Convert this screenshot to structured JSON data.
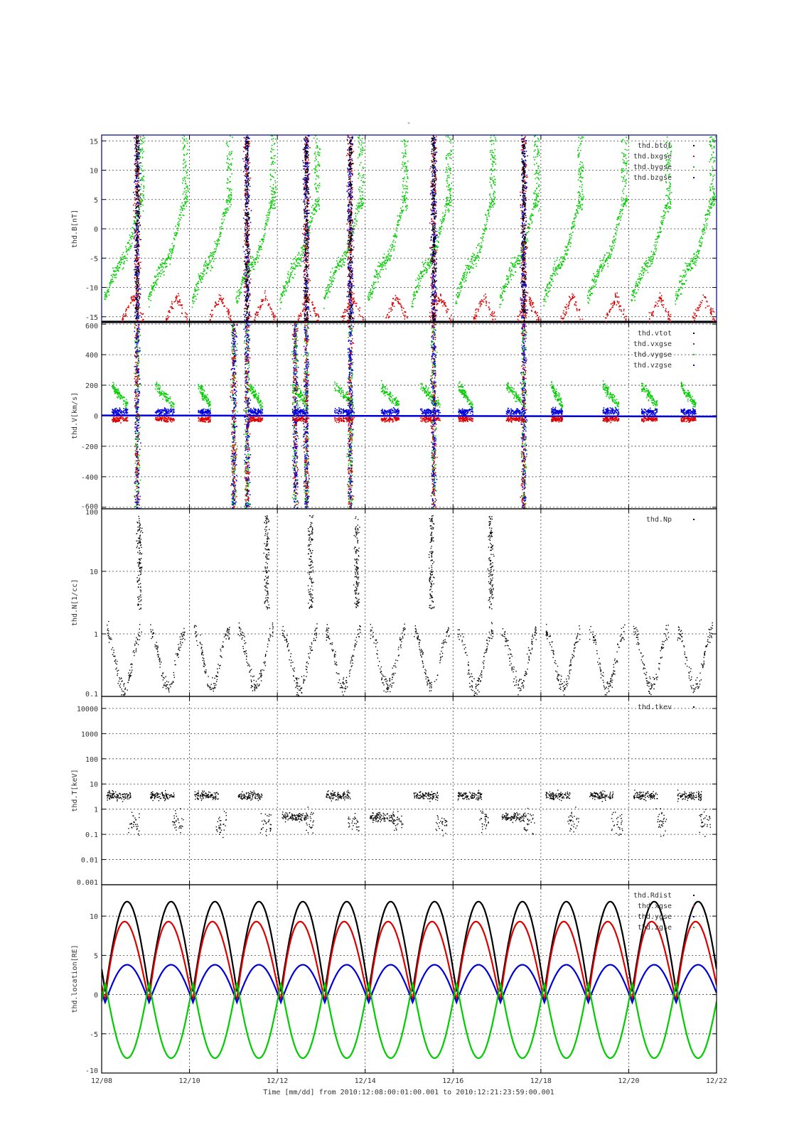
{
  "page_title": "-",
  "x_axis": {
    "tick_labels": [
      "12/08",
      "12/10",
      "12/12",
      "12/14",
      "12/16",
      "12/18",
      "12/20",
      "12/22"
    ],
    "title": "Time [mm/dd]  from 2010:12:08:00:01:00.001  to  2010:12:21:23:59:00.001"
  },
  "chart_data": [
    {
      "type": "scatter",
      "ylabel": "thd.B[nT]",
      "ylim": [
        -16,
        16
      ],
      "ytick_labels": [
        "15",
        "10",
        "5",
        "0",
        "-5",
        "-10",
        "-15"
      ],
      "ytick_values": [
        15,
        10,
        5,
        0,
        -5,
        -10,
        -15
      ],
      "legend_placement": "top-right",
      "grid": true,
      "series": [
        {
          "name": "thd.btot",
          "color": "#000000"
        },
        {
          "name": "thd.bxgse",
          "color": "#dd0000"
        },
        {
          "name": "thd.bygse",
          "color": "#00cc00"
        },
        {
          "name": "thd.bzgse",
          "color": "#0000dd"
        }
      ]
    },
    {
      "type": "scatter",
      "ylabel": "thd.V[km/s]",
      "ylim": [
        -610,
        610
      ],
      "ytick_labels": [
        "600",
        "400",
        "200",
        "0",
        "-200",
        "-400",
        "-600"
      ],
      "ytick_values": [
        600,
        400,
        200,
        0,
        -200,
        -400,
        -600
      ],
      "legend_placement": "top-right",
      "grid": true,
      "series": [
        {
          "name": "thd.vtot",
          "color": "#000000"
        },
        {
          "name": "thd.vxgse",
          "color": "#dd0000"
        },
        {
          "name": "thd.vygse",
          "color": "#00cc00"
        },
        {
          "name": "thd.vzgse",
          "color": "#0000dd"
        }
      ]
    },
    {
      "type": "scatter",
      "ylabel": "thd.N[1/cc]",
      "log_scale": true,
      "ylim": [
        0.1,
        100
      ],
      "ytick_labels": [
        "100",
        "10",
        "1",
        "0.1"
      ],
      "ytick_values": [
        100,
        10,
        1,
        0.1
      ],
      "legend_placement": "top-right",
      "grid": true,
      "series": [
        {
          "name": "thd.Np",
          "color": "#000000"
        }
      ]
    },
    {
      "type": "scatter",
      "ylabel": "thd.T[keV]",
      "log_scale": true,
      "ylim": [
        0.001,
        30000
      ],
      "ytick_labels": [
        "10000",
        "1000",
        "100",
        "10",
        "1",
        "0.1",
        "0.01",
        "0.001"
      ],
      "ytick_values": [
        10000,
        1000,
        100,
        10,
        1,
        0.1,
        0.01,
        0.001
      ],
      "legend_placement": "top-right",
      "grid": true,
      "series": [
        {
          "name": "thd.tkev",
          "color": "#000000"
        }
      ]
    },
    {
      "type": "line",
      "ylabel": "thd.location[RE]",
      "ylim": [
        -10,
        14
      ],
      "ytick_labels": [
        "10",
        "5",
        "0",
        "-5",
        "-10"
      ],
      "ytick_values": [
        10,
        5,
        0,
        -5,
        -10
      ],
      "legend_placement": "top-right",
      "grid": true,
      "series": [
        {
          "name": "thd.Rdist",
          "color": "#000000"
        },
        {
          "name": "thd.xgse",
          "color": "#dd0000"
        },
        {
          "name": "thd.ygse",
          "color": "#0000dd"
        },
        {
          "name": "thd.zgse",
          "color": "#00cc00"
        }
      ],
      "orbit_period_days": 1.0,
      "apogee_rdist": 11.8
    }
  ]
}
